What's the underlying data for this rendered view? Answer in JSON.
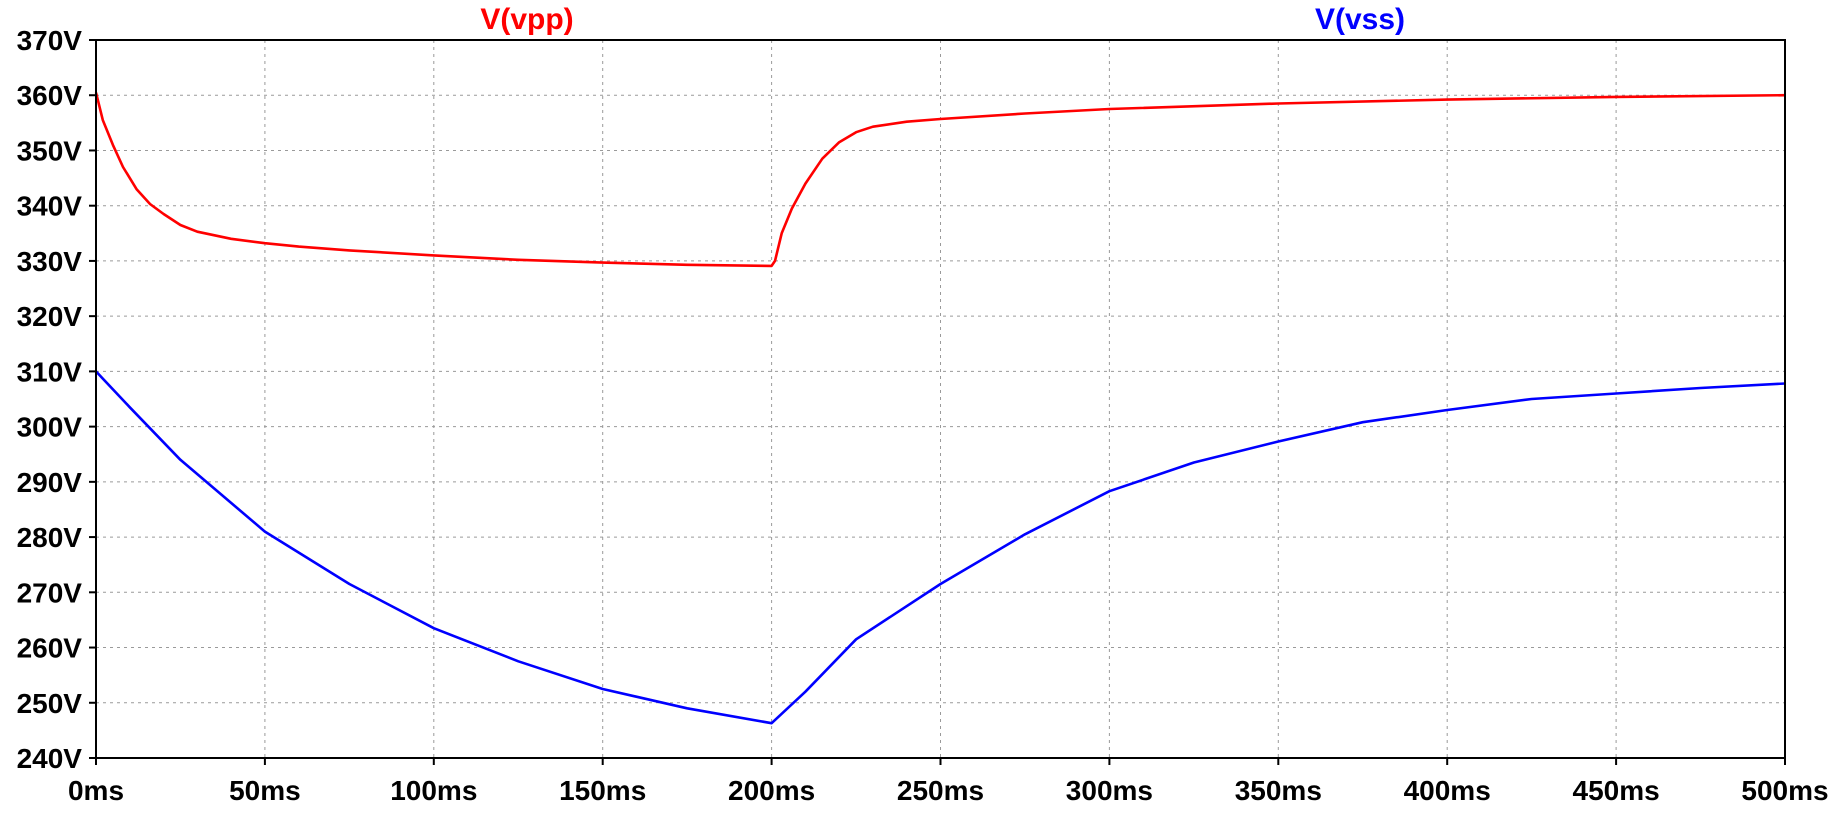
{
  "chart_data": {
    "type": "line",
    "title": "",
    "xlabel": "",
    "ylabel": "",
    "xlim": [
      0,
      500
    ],
    "ylim": [
      240,
      370
    ],
    "grid": true,
    "x_ticks": [
      0,
      50,
      100,
      150,
      200,
      250,
      300,
      350,
      400,
      450,
      500
    ],
    "x_tick_labels": [
      "0ms",
      "50ms",
      "100ms",
      "150ms",
      "200ms",
      "250ms",
      "300ms",
      "350ms",
      "400ms",
      "450ms",
      "500ms"
    ],
    "y_ticks": [
      240,
      250,
      260,
      270,
      280,
      290,
      300,
      310,
      320,
      330,
      340,
      350,
      360,
      370
    ],
    "y_tick_labels": [
      "240V",
      "250V",
      "260V",
      "270V",
      "280V",
      "290V",
      "300V",
      "310V",
      "320V",
      "330V",
      "340V",
      "350V",
      "360V",
      "370V"
    ],
    "series": [
      {
        "name": "V(vpp)",
        "color": "#ff0000",
        "x": [
          0,
          2,
          5,
          8,
          12,
          16,
          20,
          25,
          30,
          40,
          50,
          60,
          75,
          100,
          125,
          150,
          175,
          200,
          201,
          203,
          206,
          210,
          215,
          220,
          225,
          230,
          240,
          250,
          275,
          300,
          350,
          400,
          450,
          500
        ],
        "y": [
          360.5,
          355.5,
          351,
          347,
          343,
          340.3,
          338.5,
          336.5,
          335.3,
          334,
          333.2,
          332.6,
          331.9,
          331,
          330.2,
          329.7,
          329.3,
          329.1,
          330,
          335,
          339.5,
          344,
          348.5,
          351.5,
          353.3,
          354.3,
          355.2,
          355.7,
          356.7,
          357.5,
          358.5,
          359.2,
          359.7,
          360
        ]
      },
      {
        "name": "V(vss)",
        "color": "#0000ff",
        "x": [
          0,
          10,
          25,
          50,
          75,
          100,
          125,
          150,
          175,
          200,
          210,
          225,
          250,
          275,
          300,
          325,
          350,
          375,
          400,
          425,
          450,
          475,
          500
        ],
        "y": [
          310,
          303.5,
          294,
          281,
          271.5,
          263.5,
          257.5,
          252.5,
          249,
          246.3,
          252,
          261.5,
          271.5,
          280.5,
          288.3,
          293.5,
          297.3,
          300.8,
          303,
          305,
          306,
          307,
          307.8
        ]
      }
    ]
  }
}
